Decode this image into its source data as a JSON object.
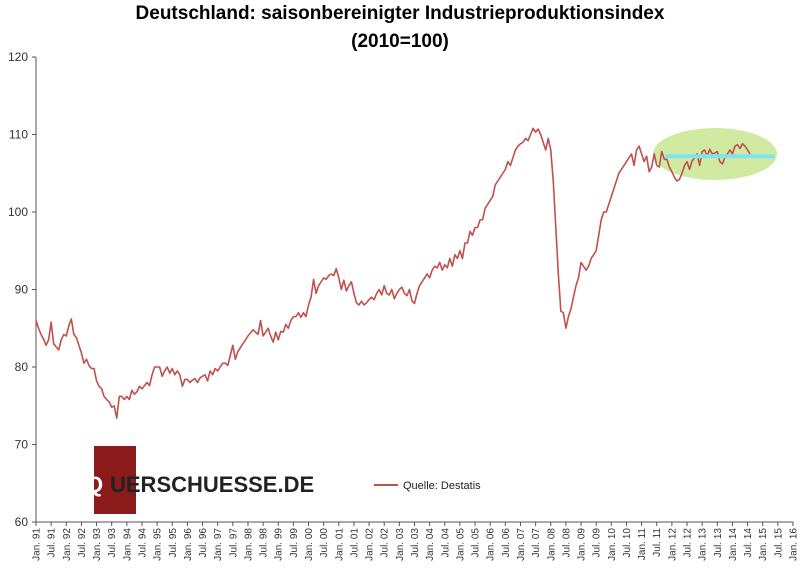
{
  "chart_data": {
    "type": "line",
    "title": "Deutschland: saisonbereinigter Industrieproduktionsindex",
    "subtitle": "(2010=100)",
    "xlabel": "",
    "ylabel": "",
    "ylim": [
      60,
      120
    ],
    "yticks": [
      60,
      70,
      80,
      90,
      100,
      110,
      120
    ],
    "x_tick_labels": [
      "Jan. 91",
      "Jul. 91",
      "Jan. 92",
      "Jul. 92",
      "Jan. 93",
      "Jul. 93",
      "Jan. 94",
      "Jul. 94",
      "Jan. 95",
      "Jul. 95",
      "Jan. 96",
      "Jul. 96",
      "Jan. 97",
      "Jul. 97",
      "Jan. 98",
      "Jul. 98",
      "Jan. 99",
      "Jul. 99",
      "Jan. 00",
      "Jul. 00",
      "Jan. 01",
      "Jul. 01",
      "Jan. 02",
      "Jul. 02",
      "Jan. 03",
      "Jul. 03",
      "Jan. 04",
      "Jul. 04",
      "Jan. 05",
      "Jul. 05",
      "Jan. 06",
      "Jul. 06",
      "Jan. 07",
      "Jul. 07",
      "Jan. 08",
      "Jul. 08",
      "Jan. 09",
      "Jul. 09",
      "Jan. 10",
      "Jul. 10",
      "Jan. 11",
      "Jul. 11",
      "Jan. 12",
      "Jul. 12",
      "Jan. 13",
      "Jul. 13",
      "Jan. 14",
      "Jul. 14",
      "Jan. 15",
      "Jul. 15",
      "Jan. 16"
    ],
    "grid": false,
    "legend_position": "bottom-center",
    "series": [
      {
        "name": "Quelle: Destatis",
        "color": "#c0504d",
        "start": "Jan. 91",
        "frequency": "monthly",
        "values": [
          86.0,
          85.0,
          84.2,
          83.6,
          82.8,
          83.5,
          85.8,
          83.0,
          82.6,
          82.2,
          83.5,
          84.2,
          84.0,
          85.3,
          86.2,
          84.2,
          83.8,
          82.8,
          81.8,
          80.5,
          81.0,
          80.2,
          79.8,
          79.8,
          78.2,
          77.5,
          77.2,
          76.2,
          75.8,
          75.5,
          74.8,
          75.0,
          73.4,
          76.2,
          76.2,
          75.8,
          76.2,
          75.8,
          77.0,
          76.5,
          76.8,
          77.5,
          77.2,
          77.6,
          78.0,
          77.6,
          79.0,
          80.0,
          80.0,
          80.0,
          78.8,
          79.5,
          80.0,
          79.2,
          79.8,
          79.0,
          79.5,
          79.0,
          77.5,
          78.4,
          78.4,
          78.0,
          78.3,
          78.5,
          78.0,
          78.6,
          78.8,
          79.0,
          78.2,
          79.5,
          79.0,
          79.8,
          79.5,
          80.0,
          80.5,
          80.5,
          80.2,
          81.5,
          82.8,
          81.0,
          82.0,
          82.5,
          83.0,
          83.5,
          84.0,
          84.4,
          84.8,
          84.5,
          84.2,
          86.0,
          84.0,
          84.5,
          85.0,
          84.0,
          83.2,
          84.5,
          83.5,
          84.6,
          84.5,
          85.5,
          85.0,
          86.0,
          86.5,
          86.5,
          87.0,
          86.4,
          87.0,
          86.5,
          88.0,
          89.0,
          91.3,
          89.5,
          90.5,
          91.0,
          91.5,
          91.3,
          91.8,
          92.0,
          91.8,
          92.7,
          91.5,
          90.0,
          91.2,
          89.8,
          90.5,
          91.0,
          89.5,
          88.3,
          88.0,
          88.5,
          88.0,
          88.3,
          88.7,
          89.0,
          88.7,
          89.5,
          90.0,
          89.3,
          90.5,
          89.5,
          89.3,
          90.0,
          88.8,
          89.5,
          90.0,
          90.3,
          89.5,
          89.2,
          90.0,
          88.5,
          88.2,
          89.5,
          90.5,
          91.0,
          91.5,
          92.0,
          91.5,
          92.5,
          93.0,
          92.8,
          93.5,
          92.5,
          93.2,
          92.8,
          94.0,
          93.0,
          94.5,
          94.0,
          95.0,
          94.0,
          96.0,
          96.0,
          97.5,
          97.0,
          98.0,
          98.0,
          99.0,
          99.0,
          100.5,
          101.0,
          101.5,
          102.0,
          103.5,
          104.0,
          104.5,
          105.0,
          105.5,
          106.5,
          106.0,
          107.0,
          108.0,
          108.5,
          108.8,
          109.0,
          109.5,
          109.2,
          110.0,
          110.8,
          110.3,
          110.7,
          110.0,
          109.0,
          108.0,
          109.5,
          108.0,
          104.0,
          98.0,
          92.0,
          87.2,
          87.0,
          85.0,
          86.5,
          87.5,
          89.0,
          90.5,
          91.5,
          93.5,
          93.0,
          92.5,
          93.0,
          94.0,
          94.5,
          95.0,
          97.0,
          99.0,
          100.0,
          100.0,
          101.0,
          102.0,
          103.0,
          104.0,
          105.0,
          105.5,
          106.0,
          106.5,
          107.0,
          107.5,
          106.0,
          108.0,
          108.5,
          107.5,
          106.5,
          107.2,
          105.2,
          105.8,
          107.5,
          106.0,
          105.8,
          107.8,
          106.8,
          106.8,
          105.8,
          105.2,
          104.5,
          104.0,
          104.2,
          105.0,
          106.0,
          106.5,
          105.5,
          106.6,
          107.0,
          107.5,
          106.0,
          107.8,
          108.0,
          107.2,
          108.1,
          107.5,
          107.6,
          107.8,
          106.5,
          106.2,
          107.0,
          107.5,
          108.0,
          107.5,
          108.5,
          108.7,
          108.2,
          108.8,
          108.5,
          108.0,
          107.5
        ]
      }
    ],
    "trend_line": {
      "value": 107.2,
      "from": "Nov. 11",
      "to": "Mai 15",
      "color": "#7fe3f0"
    },
    "highlight_ellipse": {
      "color": "#c8e890"
    }
  },
  "watermark": {
    "prefix": "Q",
    "text": "UERSCHUESSE.DE",
    "box_color": "#8b1a1a",
    "text_color": "#222222"
  }
}
